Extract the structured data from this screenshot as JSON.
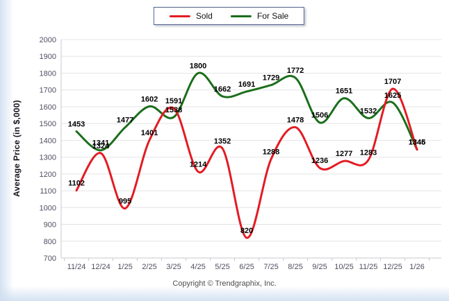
{
  "chart_data": {
    "type": "line",
    "title": "",
    "categories": [
      "11/24",
      "12/24",
      "1/25",
      "2/25",
      "3/25",
      "4/25",
      "5/25",
      "6/25",
      "7/25",
      "8/25",
      "9/25",
      "10/25",
      "11/25",
      "12/25",
      "1/26"
    ],
    "series": [
      {
        "name": "For Sale",
        "color": "#1a6e1a",
        "values": [
          1453,
          1341,
          1477,
          1602,
          1538,
          1800,
          1662,
          1691,
          1729,
          1772,
          1506,
          1651,
          1532,
          1625,
          1346
        ]
      },
      {
        "name": "Sold",
        "color": "#e31b23",
        "values": [
          1102,
          1324,
          995,
          1401,
          1591,
          1214,
          1352,
          820,
          1288,
          1478,
          1236,
          1277,
          1283,
          1707,
          1345
        ]
      }
    ],
    "xlabel": "",
    "ylabel": "Average Price (in $,000)",
    "ylim": [
      700,
      2000
    ],
    "ytick_step": 100,
    "grid": "horizontal",
    "legend_position": "top-center",
    "legend_order": [
      "Sold",
      "For Sale"
    ]
  },
  "footer": {
    "copyright": "Copyright © Trendgraphix, Inc."
  },
  "colors": {
    "background": "#ffffff",
    "edge_tint": "#cdddf0",
    "gridline": "#e4e4e8",
    "axis_line": "#c9c9d2",
    "tick_text": "#4f4f62",
    "data_label_text": "#000000",
    "legend_border": "#50618c",
    "sold_line": "#e31b23",
    "for_sale_line": "#1a6e1a"
  }
}
